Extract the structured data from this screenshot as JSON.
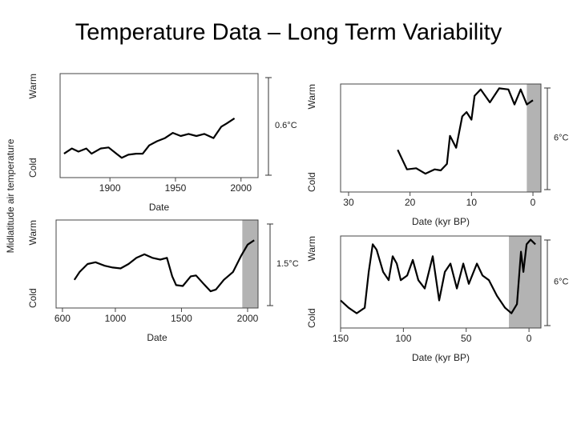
{
  "title": "Temperature Data – Long Term Variability",
  "ylabel": "Midlatitude air temperature",
  "chart_data": [
    {
      "type": "line",
      "xlabel": "Date",
      "color": "#000000",
      "shade_color": "#999999",
      "x": [
        1865,
        1871,
        1876,
        1882,
        1886,
        1893,
        1899,
        1905,
        1909,
        1914,
        1920,
        1925,
        1930,
        1936,
        1942,
        1948,
        1954,
        1960,
        1966,
        1972,
        1979,
        1985,
        1989,
        1995
      ],
      "values": [
        0.23,
        0.28,
        0.25,
        0.28,
        0.23,
        0.28,
        0.29,
        0.23,
        0.19,
        0.22,
        0.23,
        0.23,
        0.31,
        0.35,
        0.38,
        0.43,
        0.4,
        0.42,
        0.4,
        0.42,
        0.38,
        0.49,
        0.52,
        0.57
      ],
      "xlim": [
        1862,
        2013
      ],
      "xticks": [
        1900,
        1950,
        2000
      ],
      "ylim": [
        0,
        1
      ],
      "yticks": [
        {
          "value": 0,
          "label": "Cold"
        },
        {
          "value": 1,
          "label": "Warm"
        }
      ],
      "scale_label": "0.6°C"
    },
    {
      "type": "line",
      "xlabel": "Date (kyr BP)",
      "color": "#000000",
      "shade_color": "#999999",
      "x": [
        22,
        20.5,
        19,
        17.5,
        16,
        15,
        14,
        13.5,
        12.5,
        11.5,
        10.8,
        10,
        9.5,
        8.5,
        7,
        5.5,
        4,
        3,
        2,
        1,
        0
      ],
      "values": [
        0.39,
        0.21,
        0.22,
        0.17,
        0.21,
        0.2,
        0.26,
        0.52,
        0.41,
        0.7,
        0.74,
        0.67,
        0.89,
        0.95,
        0.83,
        0.96,
        0.95,
        0.81,
        0.95,
        0.81,
        0.85
      ],
      "xlim": [
        31.3,
        -1.3
      ],
      "xticks": [
        30,
        20,
        10,
        0
      ],
      "ylim": [
        0,
        1
      ],
      "yticks": [
        {
          "value": 0,
          "label": "Cold"
        },
        {
          "value": 1,
          "label": "Warm"
        }
      ],
      "scale_label": "6°C",
      "shade": [
        1,
        -1.3
      ]
    },
    {
      "type": "line",
      "xlabel": "Date",
      "color": "#000000",
      "shade_color": "#999999",
      "x": [
        690,
        730,
        790,
        850,
        920,
        980,
        1040,
        1100,
        1160,
        1220,
        1280,
        1340,
        1390,
        1430,
        1460,
        1510,
        1570,
        1610,
        1670,
        1720,
        1760,
        1820,
        1890,
        1950,
        2000,
        2050
      ],
      "values": [
        0.32,
        0.41,
        0.5,
        0.52,
        0.48,
        0.46,
        0.45,
        0.5,
        0.57,
        0.61,
        0.57,
        0.55,
        0.57,
        0.36,
        0.26,
        0.25,
        0.36,
        0.37,
        0.27,
        0.19,
        0.21,
        0.32,
        0.41,
        0.59,
        0.72,
        0.77
      ],
      "xlim": [
        552,
        2079
      ],
      "xticks": [
        600,
        1000,
        1500,
        2000
      ],
      "ylim": [
        0,
        1
      ],
      "yticks": [
        {
          "value": 0,
          "label": "Cold"
        },
        {
          "value": 1,
          "label": "Warm"
        }
      ],
      "scale_label": "1.5°C",
      "shade": [
        1960,
        2079
      ]
    },
    {
      "type": "line",
      "xlabel": "Date (kyr BP)",
      "color": "#000000",
      "shade_color": "#999999",
      "x": [
        150,
        143.6,
        137.2,
        130.8,
        127.6,
        124.4,
        121.3,
        116.1,
        111.7,
        108.5,
        105.3,
        102.1,
        97,
        92.5,
        88.1,
        83,
        76.6,
        71.5,
        67,
        62.5,
        57.4,
        52.3,
        47.9,
        41.5,
        37,
        31.9,
        25.5,
        19.1,
        14,
        9.6,
        6.4,
        4.5,
        1.9,
        -1.3,
        -5.1
      ],
      "values": [
        0.3,
        0.22,
        0.16,
        0.22,
        0.61,
        0.91,
        0.85,
        0.61,
        0.52,
        0.78,
        0.7,
        0.52,
        0.57,
        0.74,
        0.52,
        0.43,
        0.78,
        0.3,
        0.61,
        0.7,
        0.43,
        0.7,
        0.48,
        0.7,
        0.57,
        0.52,
        0.35,
        0.22,
        0.16,
        0.26,
        0.83,
        0.61,
        0.91,
        0.96,
        0.91
      ],
      "xlim": [
        150,
        -9.5
      ],
      "xticks": [
        150,
        100,
        50,
        0
      ],
      "ylim": [
        0,
        1
      ],
      "yticks": [
        {
          "value": 0,
          "label": "Cold"
        },
        {
          "value": 1,
          "label": "Warm"
        }
      ],
      "scale_label": "6°C",
      "shade": [
        16,
        -9.5
      ]
    }
  ]
}
